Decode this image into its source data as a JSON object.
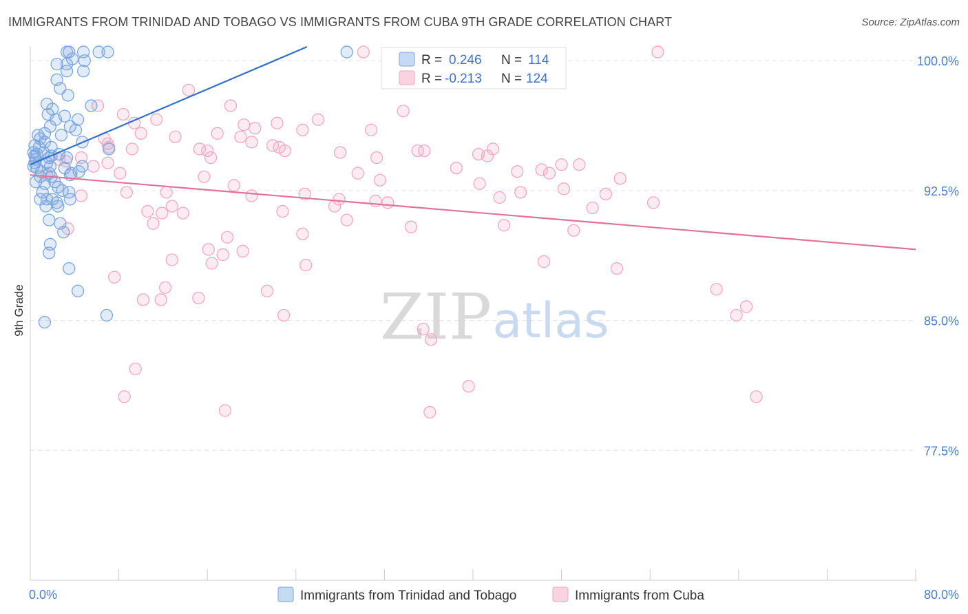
{
  "title": "IMMIGRANTS FROM TRINIDAD AND TOBAGO VS IMMIGRANTS FROM CUBA 9TH GRADE CORRELATION CHART",
  "source": "Source: ZipAtlas.com",
  "watermark": {
    "zip": "ZIP",
    "atlas": "atlas"
  },
  "chart_data": {
    "type": "scatter",
    "xlabel": "",
    "ylabel": "9th Grade",
    "xlim": [
      0.0,
      80.0
    ],
    "ylim": [
      70.0,
      100.8
    ],
    "x_tick_labels": [
      "0.0%",
      "80.0%"
    ],
    "y_ticks": [
      77.5,
      85.0,
      92.5,
      100.0
    ],
    "y_tick_labels": [
      "77.5%",
      "85.0%",
      "92.5%",
      "100.0%"
    ],
    "grid": true,
    "legend_position": "top-center",
    "series": [
      {
        "name": "Immigrants from Trinidad and Tobago",
        "color": "#7aa6e0",
        "line_color": "#2f6fcf",
        "R": "0.246",
        "N": "114",
        "trend": {
          "x": [
            0.0,
            25.0
          ],
          "y": [
            94.0,
            100.8
          ]
        },
        "points": [
          [
            3.5,
            100.5
          ],
          [
            4.8,
            100.5
          ],
          [
            3.3,
            100.5
          ],
          [
            6.2,
            100.5
          ],
          [
            7.0,
            100.5
          ],
          [
            28.6,
            100.5
          ],
          [
            3.8,
            100.1
          ],
          [
            4.9,
            100.0
          ],
          [
            2.4,
            99.8
          ],
          [
            3.3,
            99.8
          ],
          [
            3.3,
            99.4
          ],
          [
            4.8,
            99.4
          ],
          [
            2.4,
            98.9
          ],
          [
            2.7,
            98.4
          ],
          [
            3.4,
            98.0
          ],
          [
            1.5,
            97.5
          ],
          [
            2.0,
            97.2
          ],
          [
            5.5,
            97.4
          ],
          [
            1.6,
            96.9
          ],
          [
            2.3,
            96.6
          ],
          [
            3.1,
            96.8
          ],
          [
            4.3,
            96.6
          ],
          [
            1.8,
            96.2
          ],
          [
            3.6,
            96.2
          ],
          [
            4.1,
            96.0
          ],
          [
            0.7,
            95.7
          ],
          [
            1.3,
            95.8
          ],
          [
            2.8,
            95.7
          ],
          [
            0.9,
            95.5
          ],
          [
            1.3,
            95.3
          ],
          [
            4.7,
            95.3
          ],
          [
            0.4,
            95.1
          ],
          [
            0.8,
            95.0
          ],
          [
            1.9,
            95.0
          ],
          [
            7.1,
            94.9
          ],
          [
            0.3,
            94.7
          ],
          [
            1.2,
            94.7
          ],
          [
            0.6,
            94.6
          ],
          [
            0.4,
            94.5
          ],
          [
            1.9,
            94.5
          ],
          [
            2.6,
            94.6
          ],
          [
            0.5,
            94.3
          ],
          [
            1.7,
            94.4
          ],
          [
            3.3,
            94.4
          ],
          [
            0.4,
            94.1
          ],
          [
            1.5,
            94.1
          ],
          [
            0.3,
            93.9
          ],
          [
            0.6,
            93.8
          ],
          [
            1.8,
            93.9
          ],
          [
            3.1,
            93.8
          ],
          [
            4.7,
            93.9
          ],
          [
            1.0,
            93.6
          ],
          [
            1.7,
            93.5
          ],
          [
            3.6,
            93.4
          ],
          [
            4.4,
            93.6
          ],
          [
            0.9,
            93.3
          ],
          [
            1.9,
            93.3
          ],
          [
            3.7,
            93.5
          ],
          [
            0.5,
            93.0
          ],
          [
            1.3,
            92.9
          ],
          [
            2.2,
            93.0
          ],
          [
            2.5,
            92.7
          ],
          [
            1.1,
            92.4
          ],
          [
            2.9,
            92.5
          ],
          [
            3.5,
            92.4
          ],
          [
            0.9,
            92.0
          ],
          [
            1.5,
            92.0
          ],
          [
            2.0,
            92.0
          ],
          [
            2.4,
            91.8
          ],
          [
            3.6,
            92.0
          ],
          [
            1.4,
            91.6
          ],
          [
            2.5,
            91.6
          ],
          [
            1.7,
            90.8
          ],
          [
            2.7,
            90.6
          ],
          [
            3.0,
            90.1
          ],
          [
            1.8,
            89.4
          ],
          [
            1.7,
            88.9
          ],
          [
            3.5,
            88.0
          ],
          [
            4.3,
            86.7
          ],
          [
            6.9,
            85.3
          ],
          [
            1.3,
            84.9
          ]
        ]
      },
      {
        "name": "Immigrants from Cuba",
        "color": "#f2a7bf",
        "line_color": "#e0729a",
        "R": "-0.213",
        "N": "124",
        "trend": {
          "x": [
            0.0,
            80.0
          ],
          "y": [
            93.4,
            89.1
          ]
        },
        "points": [
          [
            30.1,
            100.5
          ],
          [
            56.7,
            100.5
          ],
          [
            14.3,
            98.3
          ],
          [
            6.1,
            97.4
          ],
          [
            18.1,
            97.4
          ],
          [
            8.4,
            96.9
          ],
          [
            26.0,
            96.6
          ],
          [
            33.7,
            97.1
          ],
          [
            19.3,
            96.3
          ],
          [
            22.3,
            96.4
          ],
          [
            20.3,
            96.1
          ],
          [
            24.6,
            96.0
          ],
          [
            9.4,
            96.4
          ],
          [
            11.4,
            96.6
          ],
          [
            30.8,
            96.0
          ],
          [
            10.0,
            95.8
          ],
          [
            13.1,
            95.6
          ],
          [
            16.9,
            95.8
          ],
          [
            19.0,
            95.6
          ],
          [
            6.7,
            95.5
          ],
          [
            7.0,
            95.2
          ],
          [
            7.1,
            95.0
          ],
          [
            20.0,
            95.3
          ],
          [
            21.9,
            95.1
          ],
          [
            22.5,
            95.0
          ],
          [
            23.0,
            94.8
          ],
          [
            15.3,
            94.9
          ],
          [
            9.2,
            94.9
          ],
          [
            16.0,
            94.8
          ],
          [
            35.0,
            94.8
          ],
          [
            35.6,
            94.8
          ],
          [
            40.5,
            94.6
          ],
          [
            41.3,
            94.5
          ],
          [
            41.8,
            94.9
          ],
          [
            28.0,
            94.7
          ],
          [
            4.6,
            94.4
          ],
          [
            31.3,
            94.4
          ],
          [
            16.3,
            94.4
          ],
          [
            2.6,
            94.3
          ],
          [
            3.2,
            94.2
          ],
          [
            7.0,
            94.1
          ],
          [
            48.0,
            94.0
          ],
          [
            49.6,
            94.0
          ],
          [
            5.7,
            93.9
          ],
          [
            38.5,
            93.8
          ],
          [
            44.0,
            93.6
          ],
          [
            46.2,
            93.7
          ],
          [
            29.6,
            93.5
          ],
          [
            46.9,
            93.5
          ],
          [
            8.1,
            93.5
          ],
          [
            1.5,
            93.4
          ],
          [
            15.7,
            93.3
          ],
          [
            31.6,
            93.1
          ],
          [
            53.3,
            93.2
          ],
          [
            40.6,
            92.9
          ],
          [
            18.4,
            92.8
          ],
          [
            48.2,
            92.6
          ],
          [
            44.3,
            92.4
          ],
          [
            52.0,
            92.3
          ],
          [
            8.7,
            92.4
          ],
          [
            12.3,
            92.4
          ],
          [
            20.0,
            92.2
          ],
          [
            24.8,
            92.3
          ],
          [
            4.6,
            92.2
          ],
          [
            27.9,
            92.0
          ],
          [
            31.2,
            91.9
          ],
          [
            32.3,
            91.8
          ],
          [
            56.3,
            91.8
          ],
          [
            42.4,
            92.1
          ],
          [
            27.5,
            91.6
          ],
          [
            12.8,
            91.6
          ],
          [
            13.8,
            91.2
          ],
          [
            10.6,
            91.3
          ],
          [
            11.9,
            91.2
          ],
          [
            22.8,
            91.3
          ],
          [
            50.8,
            91.5
          ],
          [
            11.1,
            90.6
          ],
          [
            28.6,
            90.8
          ],
          [
            34.4,
            90.4
          ],
          [
            42.8,
            90.5
          ],
          [
            49.1,
            90.2
          ],
          [
            24.6,
            90.0
          ],
          [
            3.4,
            90.3
          ],
          [
            17.8,
            89.8
          ],
          [
            16.1,
            89.1
          ],
          [
            19.2,
            89.0
          ],
          [
            17.4,
            88.8
          ],
          [
            12.8,
            88.5
          ],
          [
            16.4,
            88.3
          ],
          [
            24.9,
            88.2
          ],
          [
            46.4,
            88.4
          ],
          [
            53.0,
            88.0
          ],
          [
            7.6,
            87.5
          ],
          [
            12.2,
            86.9
          ],
          [
            21.4,
            86.7
          ],
          [
            11.8,
            86.2
          ],
          [
            15.2,
            86.3
          ],
          [
            22.9,
            85.3
          ],
          [
            10.2,
            86.2
          ],
          [
            62.0,
            86.8
          ],
          [
            64.7,
            85.8
          ],
          [
            63.8,
            85.3
          ],
          [
            35.5,
            84.5
          ],
          [
            36.2,
            83.9
          ],
          [
            9.5,
            82.2
          ],
          [
            8.5,
            80.6
          ],
          [
            39.6,
            81.2
          ],
          [
            65.6,
            80.6
          ],
          [
            17.6,
            79.8
          ],
          [
            36.1,
            79.7
          ]
        ]
      }
    ]
  },
  "legend_labels": {
    "r": "R =",
    "n": "N ="
  },
  "bottom_legend": [
    "Immigrants from Trinidad and Tobago",
    "Immigrants from Cuba"
  ]
}
